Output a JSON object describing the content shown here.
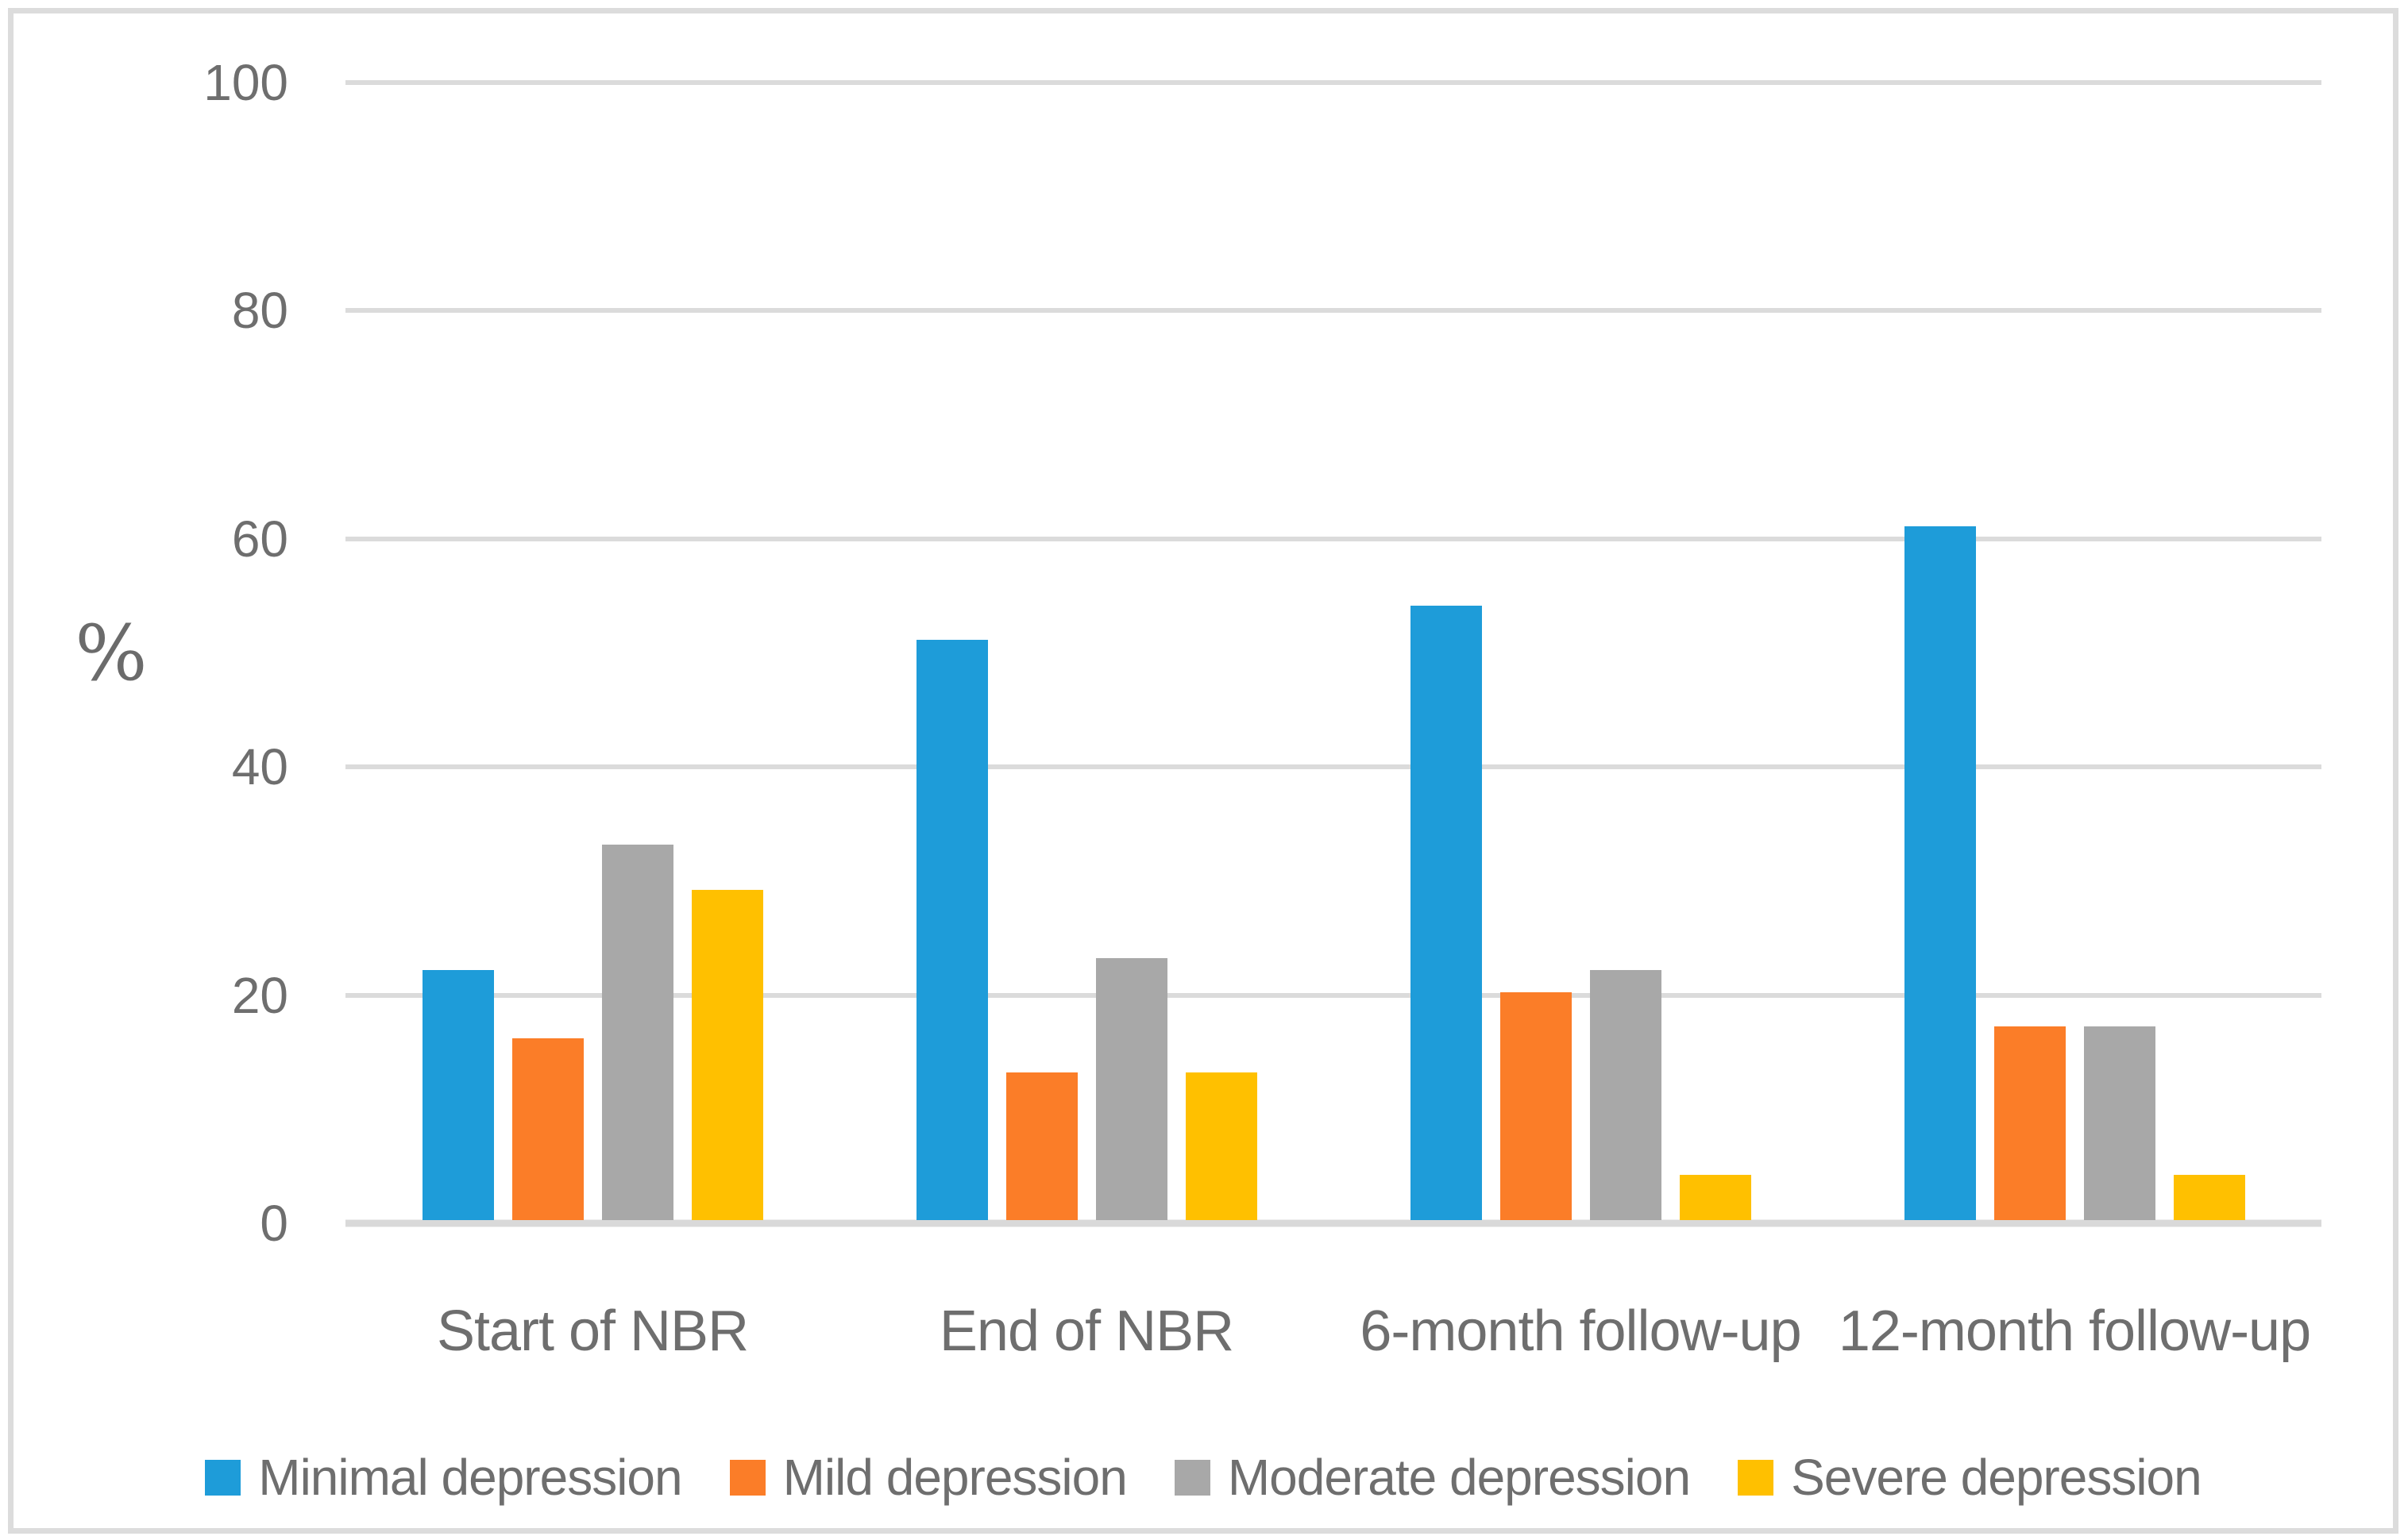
{
  "figure": {
    "background": "#FFFFFF",
    "frame_border_color": "#DCDCDC",
    "gridline_color": "#DBDBDB",
    "baseline_color": "#D9D9D9",
    "axis_text_color": "#6E6E6E"
  },
  "chart_data": {
    "type": "bar",
    "title": "",
    "xlabel": "",
    "ylabel": "%",
    "ylim": [
      0,
      100
    ],
    "yticks": [
      0,
      20,
      40,
      60,
      80,
      100
    ],
    "grid": true,
    "legend_position": "bottom",
    "categories": [
      "Start of NBR",
      "End of NBR",
      "6-month follow-up",
      "12-month follow-up"
    ],
    "series": [
      {
        "name": "Minimal depression",
        "color": "#1E9CD9",
        "values": [
          22,
          51,
          54,
          61
        ]
      },
      {
        "name": "Mild depression",
        "color": "#FB7D28",
        "values": [
          16,
          13,
          20,
          17
        ]
      },
      {
        "name": "Moderate depression",
        "color": "#A8A8A8",
        "values": [
          33,
          23,
          22,
          17
        ]
      },
      {
        "name": "Severe depression",
        "color": "#FFC000",
        "values": [
          29,
          13,
          4,
          4
        ]
      }
    ]
  }
}
